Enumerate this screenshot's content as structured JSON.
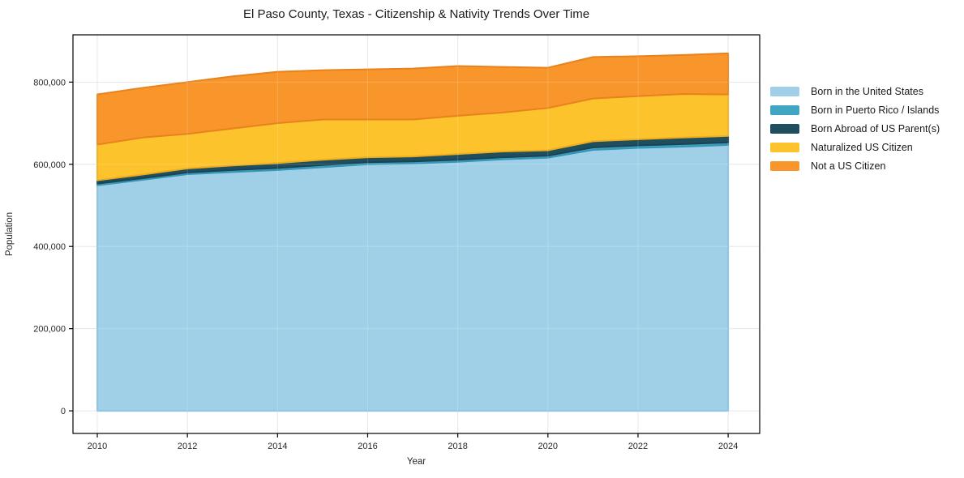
{
  "chart_data": {
    "type": "area",
    "stacked": true,
    "title": "El Paso County, Texas - Citizenship & Nativity Trends Over Time",
    "xlabel": "Year",
    "ylabel": "Population",
    "x": [
      2010,
      2011,
      2012,
      2013,
      2014,
      2015,
      2016,
      2017,
      2018,
      2019,
      2020,
      2021,
      2022,
      2023,
      2024
    ],
    "series": [
      {
        "name": "Born in the United States",
        "color": "#A0D0E8",
        "edge": "#85BFDE",
        "values": [
          549000,
          562000,
          576000,
          581000,
          586000,
          593000,
          600000,
          602000,
          606000,
          612000,
          616000,
          635000,
          640000,
          643000,
          647000
        ]
      },
      {
        "name": "Born in Puerto Rico / Islands",
        "color": "#41A6C4",
        "edge": "#3596B5",
        "values": [
          4000,
          4000,
          4000,
          5000,
          5000,
          5000,
          5000,
          5000,
          5000,
          5000,
          5000,
          6000,
          6000,
          6000,
          6000
        ]
      },
      {
        "name": "Born Abroad of US Parent(s)",
        "color": "#1F4E5F",
        "edge": "#1A4354",
        "values": [
          8000,
          9000,
          10000,
          11000,
          12000,
          13000,
          12000,
          12000,
          14000,
          14000,
          13000,
          15000,
          15000,
          16000,
          16000
        ]
      },
      {
        "name": "Naturalized US Citizen",
        "color": "#FCC32D",
        "edge": "#EEAD1E",
        "values": [
          87000,
          90000,
          84000,
          90000,
          97000,
          98000,
          92000,
          90000,
          93000,
          95000,
          103000,
          104000,
          105000,
          106000,
          101000
        ]
      },
      {
        "name": "Not a US Citizen",
        "color": "#F8962B",
        "edge": "#E8821C",
        "values": [
          122000,
          121000,
          126000,
          127000,
          125000,
          120000,
          122000,
          124000,
          121000,
          111000,
          98000,
          101000,
          97000,
          95000,
          100000
        ]
      }
    ],
    "x_ticks": [
      2010,
      2012,
      2014,
      2016,
      2018,
      2020,
      2022,
      2024
    ],
    "y_ticks": [
      0,
      200000,
      400000,
      600000,
      800000
    ],
    "y_tick_labels": [
      "0",
      "200,000",
      "400,000",
      "600,000",
      "800,000"
    ],
    "xlim": [
      2009.46,
      2024.7
    ],
    "ylim": [
      -55000,
      915000
    ],
    "grid": true,
    "legend_position": "right"
  },
  "colors": {
    "grid": "#e2e2e2",
    "spine": "#000000",
    "tick_text": "#262626",
    "title_text": "#1a1a1a"
  }
}
